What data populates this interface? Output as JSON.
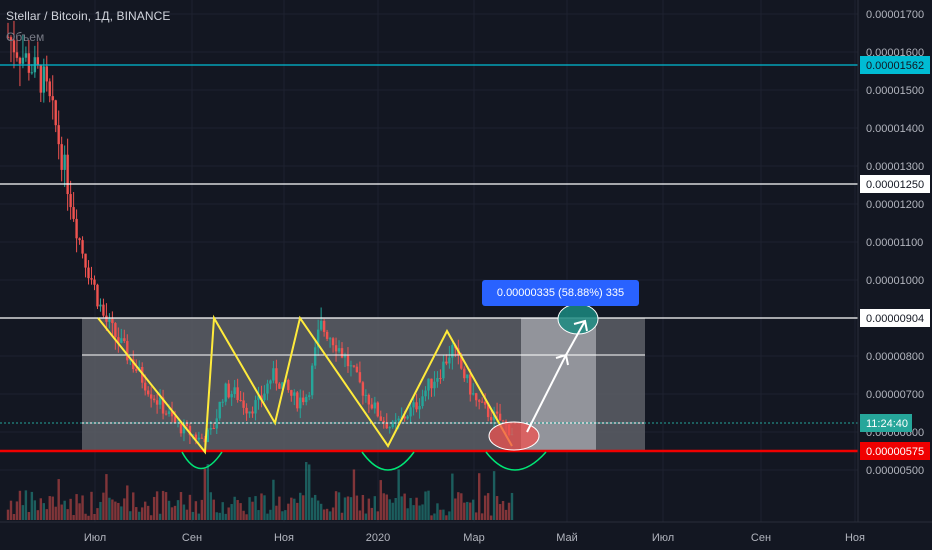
{
  "header": {
    "title": "Stellar / Bitcoin, 1Д, BINANCE",
    "subtitle": "Объем"
  },
  "measure_label": "0.00000335 (58.88%) 335",
  "colors": {
    "background": "#131722",
    "up": "#26a69a",
    "down": "#ef5350",
    "pattern": "#ffeb3b",
    "support": "#f00000",
    "cyan_line": "#00bcd4",
    "curve": "#00e676",
    "axis_text": "#b2b5be"
  },
  "chart_data": {
    "type": "candlestick",
    "symbol": "Stellar / Bitcoin",
    "interval": "1Д",
    "exchange": "BINANCE",
    "ylim": [
      4.5e-06,
      1.72e-05
    ],
    "y_ticks": [
      "0.00001700",
      "0.00001600",
      "0.00001500",
      "0.00001400",
      "0.00001300",
      "0.00001200",
      "0.00001100",
      "0.00001000",
      "0.00000900",
      "0.00000800",
      "0.00000700",
      "0.00000600",
      "0.00000500"
    ],
    "x_ticks": [
      "Июл",
      "Сен",
      "Ноя",
      "2020",
      "Мар",
      "Май",
      "Июл",
      "Сен",
      "Ноя"
    ],
    "price_levels": [
      {
        "value": 1.562e-05,
        "label": "0.00001562",
        "color": "#00bcd4"
      },
      {
        "value": 1.25e-05,
        "label": "0.00001250",
        "color": "#ffffff"
      },
      {
        "value": 9.04e-06,
        "label": "0.00000904",
        "color": "#ffffff"
      },
      {
        "value": 5.75e-06,
        "label": "0.00000575",
        "color": "#f00000"
      }
    ],
    "countdown_label": "11:24:40",
    "close_series": [
      1.64e-05,
      1.6e-05,
      1.56e-05,
      1.52e-05,
      1.4e-05,
      1.25e-05,
      1.1e-05,
      1e-05,
      9e-06,
      8.5e-06,
      8e-06,
      7.5e-06,
      7e-06,
      6.6e-06,
      6.2e-06,
      6e-06,
      5.8e-06,
      6e-06,
      7.1e-06,
      7e-06,
      6.6e-06,
      6.8e-06,
      7.5e-06,
      7.2e-06,
      6.8e-06,
      7e-06,
      8.8e-06,
      8.5e-06,
      8e-06,
      7.4e-06,
      6.9e-06,
      6.4e-06,
      6.1e-06,
      6.4e-06,
      6.7e-06,
      7.2e-06,
      7.6e-06,
      8.2e-06,
      7.5e-06,
      6.8e-06,
      6.5e-06,
      6.3e-06,
      6e-06
    ]
  }
}
